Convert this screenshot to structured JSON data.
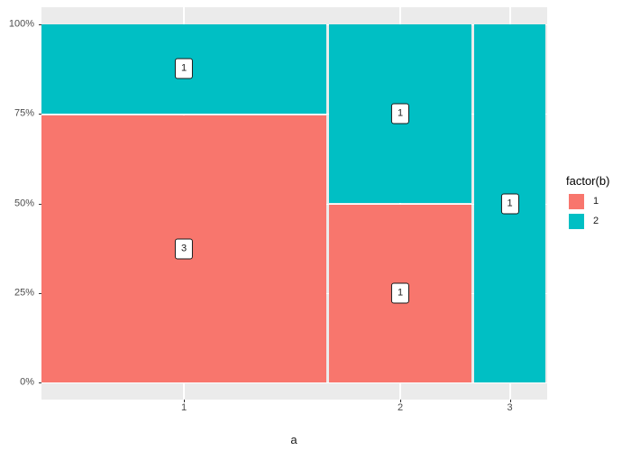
{
  "figure": {
    "background": "#FFFFFF",
    "panel_background": "#EBEBEB",
    "gridline_color": "#FFFFFF",
    "axis_text_color": "#4D4D4D",
    "tick_mark_color": "#333333",
    "tile_label_box": {
      "background": "#FFFFFF",
      "border_color": "#1A1A1A"
    }
  },
  "chart_data": {
    "type": "mosaic",
    "title": "",
    "xlabel": "a",
    "ylabel": "",
    "legend_title": "factor(b)",
    "legend_position": "right",
    "grid": true,
    "y_tick_labels": [
      "0%",
      "25%",
      "50%",
      "75%",
      "100%"
    ],
    "y_range_percent": [
      0,
      100
    ],
    "series_levels": [
      {
        "name": "1",
        "color": "#F8766D"
      },
      {
        "name": "2",
        "color": "#00BFC4"
      }
    ],
    "cells_order": "bottom-to-top",
    "column_width_rule": "proportional-to-column-total",
    "columns": [
      {
        "x": "1",
        "cells": [
          {
            "level": "1",
            "count": 3
          },
          {
            "level": "2",
            "count": 1
          }
        ]
      },
      {
        "x": "2",
        "cells": [
          {
            "level": "1",
            "count": 1
          },
          {
            "level": "2",
            "count": 1
          }
        ]
      },
      {
        "x": "3",
        "cells": [
          {
            "level": "2",
            "count": 1
          }
        ]
      }
    ]
  }
}
